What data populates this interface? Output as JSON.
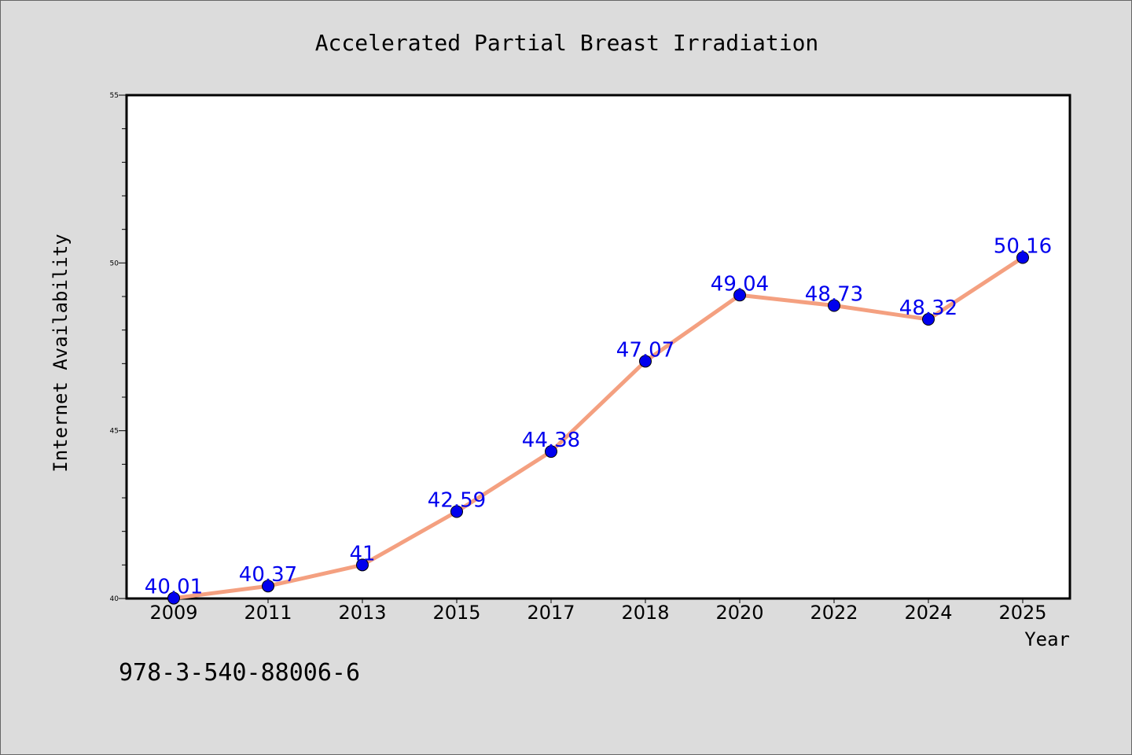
{
  "chart_data": {
    "type": "line",
    "title": "Accelerated Partial Breast Irradiation",
    "xlabel": "Year",
    "ylabel": "Internet Availability",
    "categories": [
      "2009",
      "2011",
      "2013",
      "2015",
      "2017",
      "2018",
      "2020",
      "2022",
      "2024",
      "2025"
    ],
    "series": [
      {
        "values": [
          40.01,
          40.37,
          41,
          42.59,
          44.38,
          47.07,
          49.04,
          48.73,
          48.32,
          50.16
        ],
        "labels": [
          "40.01",
          "40.37",
          "41",
          "42.59",
          "44.38",
          "47.07",
          "49.04",
          "48.73",
          "48.32",
          "50.16"
        ],
        "line_color": "#f4a080",
        "marker_color": "#0000ee",
        "label_color": "#0000ee"
      }
    ],
    "ylim": [
      40,
      55
    ],
    "yticks": [
      "40",
      "45",
      "50",
      "55"
    ],
    "grid": false,
    "legend": "none"
  },
  "annotation": "978-3-540-88006-6",
  "colors": {
    "background": "#dcdcdc",
    "plot_area": "#ffffff",
    "axis": "#000000"
  }
}
